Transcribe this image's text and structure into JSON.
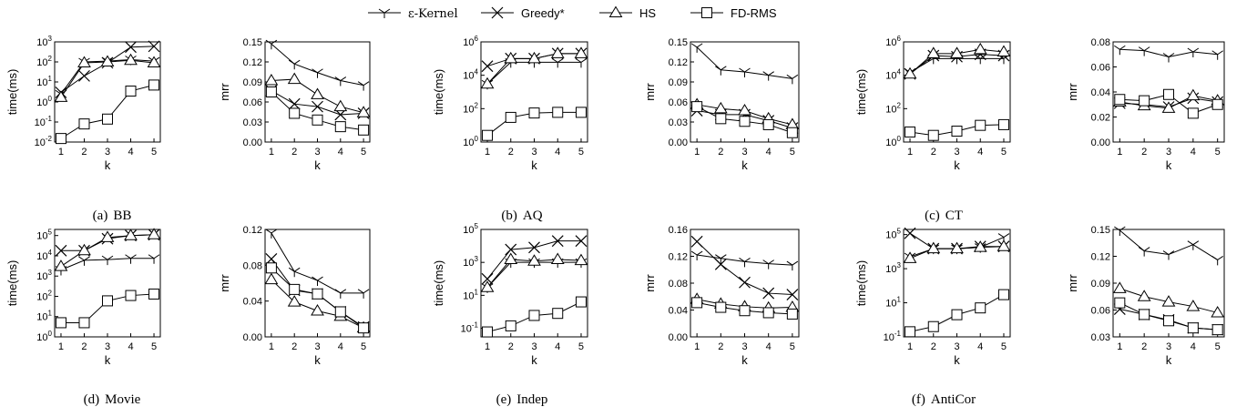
{
  "legend": {
    "entries": [
      {
        "label": "ε-Kernel",
        "marker": "tri-down-icon"
      },
      {
        "label": "Greedy*",
        "marker": "x-icon"
      },
      {
        "label": "HS",
        "marker": "triangle-icon"
      },
      {
        "label": "FD-RMS",
        "marker": "square-icon"
      }
    ]
  },
  "panels": [
    {
      "label": "(a)",
      "name": "BB"
    },
    {
      "label": "(b)",
      "name": "AQ"
    },
    {
      "label": "(c)",
      "name": "CT"
    },
    {
      "label": "(d)",
      "name": "Movie"
    },
    {
      "label": "(e)",
      "name": "Indep"
    },
    {
      "label": "(f)",
      "name": "AntiCor"
    }
  ],
  "chart_data": [
    {
      "panel": "BB",
      "type": "line",
      "xlabel": "k",
      "ylabel": "time(ms)",
      "yscale": "log",
      "x": [
        1,
        2,
        3,
        4,
        5
      ],
      "yticks": [
        "10^-2",
        "10^-1",
        "10^0",
        "10^1",
        "10^2",
        "10^3"
      ],
      "ylim": [
        0.01,
        1000
      ],
      "series": [
        {
          "name": "ε-Kernel",
          "values": [
            2.5,
            100,
            110,
            130,
            110
          ]
        },
        {
          "name": "Greedy*",
          "values": [
            3,
            20,
            90,
            550,
            600
          ]
        },
        {
          "name": "HS",
          "values": [
            1.7,
            90,
            100,
            120,
            90
          ]
        },
        {
          "name": "FD-RMS",
          "values": [
            0.015,
            0.08,
            0.14,
            3.5,
            7
          ]
        }
      ]
    },
    {
      "panel": "BB",
      "type": "line",
      "xlabel": "k",
      "ylabel": "mrr",
      "yscale": "linear",
      "x": [
        1,
        2,
        3,
        4,
        5
      ],
      "yticks": [
        "0.00",
        "0.03",
        "0.06",
        "0.09",
        "0.12",
        "0.15"
      ],
      "ylim": [
        0,
        0.15
      ],
      "series": [
        {
          "name": "ε-Kernel",
          "values": [
            0.147,
            0.117,
            0.104,
            0.092,
            0.085
          ]
        },
        {
          "name": "Greedy*",
          "values": [
            0.077,
            0.057,
            0.053,
            0.041,
            0.043
          ]
        },
        {
          "name": "HS",
          "values": [
            0.092,
            0.094,
            0.071,
            0.053,
            0.044
          ]
        },
        {
          "name": "FD-RMS",
          "values": [
            0.075,
            0.043,
            0.033,
            0.023,
            0.018
          ]
        }
      ]
    },
    {
      "panel": "AQ",
      "type": "line",
      "xlabel": "k",
      "ylabel": "time(ms)",
      "yscale": "log",
      "x": [
        1,
        2,
        3,
        4,
        5
      ],
      "yticks": [
        "10^0",
        "10^2",
        "10^4",
        "10^6"
      ],
      "ylim": [
        1,
        1000000
      ],
      "series": [
        {
          "name": "ε-Kernel",
          "values": [
            3000,
            60000,
            60000,
            60000,
            60000
          ]
        },
        {
          "name": "Greedy*",
          "values": [
            35000,
            100000,
            100000,
            200000,
            200000
          ]
        },
        {
          "name": "HS",
          "values": [
            3000,
            100000,
            100000,
            200000,
            200000
          ]
        },
        {
          "name": "FD-RMS",
          "values": [
            2.5,
            30,
            55,
            60,
            60
          ]
        }
      ]
    },
    {
      "panel": "AQ",
      "type": "line",
      "xlabel": "k",
      "ylabel": "mrr",
      "yscale": "linear",
      "x": [
        1,
        2,
        3,
        4,
        5
      ],
      "yticks": [
        "0.00",
        "0.03",
        "0.06",
        "0.09",
        "0.12",
        "0.15"
      ],
      "ylim": [
        0,
        0.15
      ],
      "series": [
        {
          "name": "ε-Kernel",
          "values": [
            0.142,
            0.108,
            0.105,
            0.1,
            0.095
          ]
        },
        {
          "name": "Greedy*",
          "values": [
            0.047,
            0.041,
            0.041,
            0.032,
            0.021
          ]
        },
        {
          "name": "HS",
          "values": [
            0.056,
            0.05,
            0.047,
            0.035,
            0.026
          ]
        },
        {
          "name": "FD-RMS",
          "values": [
            0.053,
            0.035,
            0.031,
            0.026,
            0.014
          ]
        }
      ]
    },
    {
      "panel": "CT",
      "type": "line",
      "xlabel": "k",
      "ylabel": "time(ms)",
      "yscale": "log",
      "x": [
        1,
        2,
        3,
        4,
        5
      ],
      "yticks": [
        "10^0",
        "10^2",
        "10^4",
        "10^6"
      ],
      "ylim": [
        1,
        1000000
      ],
      "series": [
        {
          "name": "ε-Kernel",
          "values": [
            15000,
            100000,
            100000,
            100000,
            100000
          ]
        },
        {
          "name": "Greedy*",
          "values": [
            12000,
            150000,
            130000,
            180000,
            150000
          ]
        },
        {
          "name": "HS",
          "values": [
            12000,
            200000,
            200000,
            350000,
            250000
          ]
        },
        {
          "name": "FD-RMS",
          "values": [
            4,
            2.5,
            4.5,
            10,
            11
          ]
        }
      ]
    },
    {
      "panel": "CT",
      "type": "line",
      "xlabel": "k",
      "ylabel": "mrr",
      "yscale": "linear",
      "x": [
        1,
        2,
        3,
        4,
        5
      ],
      "yticks": [
        "0.00",
        "0.02",
        "0.04",
        "0.06",
        "0.08"
      ],
      "ylim": [
        0,
        0.08
      ],
      "series": [
        {
          "name": "ε-Kernel",
          "values": [
            0.074,
            0.073,
            0.068,
            0.072,
            0.07
          ]
        },
        {
          "name": "Greedy*",
          "values": [
            0.031,
            0.03,
            0.028,
            0.035,
            0.032
          ]
        },
        {
          "name": "HS",
          "values": [
            0.032,
            0.029,
            0.027,
            0.037,
            0.033
          ]
        },
        {
          "name": "FD-RMS",
          "values": [
            0.034,
            0.033,
            0.038,
            0.023,
            0.03
          ]
        }
      ]
    },
    {
      "panel": "Movie",
      "type": "line",
      "xlabel": "k",
      "ylabel": "time(ms)",
      "yscale": "log",
      "x": [
        1,
        2,
        3,
        4,
        5
      ],
      "yticks": [
        "10^0",
        "10^1",
        "10^2",
        "10^3",
        "10^4",
        "10^5"
      ],
      "ylim": [
        1,
        200000
      ],
      "series": [
        {
          "name": "ε-Kernel",
          "values": [
            2000,
            6000,
            6500,
            7500,
            7500
          ]
        },
        {
          "name": "Greedy*",
          "values": [
            18000,
            18000,
            70000,
            100000,
            110000
          ]
        },
        {
          "name": "HS",
          "values": [
            3000,
            18000,
            80000,
            100000,
            110000
          ]
        },
        {
          "name": "FD-RMS",
          "values": [
            5,
            5,
            60,
            110,
            130
          ]
        }
      ]
    },
    {
      "panel": "Movie",
      "type": "line",
      "xlabel": "k",
      "ylabel": "mrr",
      "yscale": "linear",
      "x": [
        1,
        2,
        3,
        4,
        5
      ],
      "yticks": [
        "0.00",
        "0.04",
        "0.08",
        "0.12"
      ],
      "ylim": [
        0,
        0.12
      ],
      "series": [
        {
          "name": "ε-Kernel",
          "values": [
            0.116,
            0.073,
            0.063,
            0.049,
            0.049
          ]
        },
        {
          "name": "Greedy*",
          "values": [
            0.087,
            0.052,
            0.048,
            0.028,
            0.011
          ]
        },
        {
          "name": "HS",
          "values": [
            0.064,
            0.039,
            0.029,
            0.023,
            0.01
          ]
        },
        {
          "name": "FD-RMS",
          "values": [
            0.077,
            0.053,
            0.048,
            0.028,
            0.01
          ]
        }
      ]
    },
    {
      "panel": "Indep",
      "type": "line",
      "xlabel": "k",
      "ylabel": "time(ms)",
      "yscale": "log",
      "x": [
        1,
        2,
        3,
        4,
        5
      ],
      "yticks": [
        "10^-1",
        "10^1",
        "10^3",
        "10^5"
      ],
      "ylim": [
        0.03,
        100000
      ],
      "series": [
        {
          "name": "ε-Kernel",
          "values": [
            30,
            1000,
            1000,
            1000,
            1000
          ]
        },
        {
          "name": "Greedy*",
          "values": [
            100,
            6000,
            8000,
            20000,
            20000
          ]
        },
        {
          "name": "HS",
          "values": [
            30,
            1500,
            1200,
            1500,
            1300
          ]
        },
        {
          "name": "FD-RMS",
          "values": [
            0.06,
            0.14,
            0.6,
            0.8,
            4
          ]
        }
      ]
    },
    {
      "panel": "Indep",
      "type": "line",
      "xlabel": "k",
      "ylabel": "mrr",
      "yscale": "linear",
      "x": [
        1,
        2,
        3,
        4,
        5
      ],
      "yticks": [
        "0.00",
        "0.04",
        "0.08",
        "0.12",
        "0.16"
      ],
      "ylim": [
        0,
        0.16
      ],
      "series": [
        {
          "name": "ε-Kernel",
          "values": [
            0.122,
            0.117,
            0.112,
            0.109,
            0.107
          ]
        },
        {
          "name": "Greedy*",
          "values": [
            0.142,
            0.108,
            0.081,
            0.065,
            0.063
          ]
        },
        {
          "name": "HS",
          "values": [
            0.056,
            0.049,
            0.045,
            0.043,
            0.044
          ]
        },
        {
          "name": "FD-RMS",
          "values": [
            0.051,
            0.044,
            0.039,
            0.036,
            0.034
          ]
        }
      ]
    },
    {
      "panel": "AntiCor",
      "type": "line",
      "xlabel": "k",
      "ylabel": "time(ms)",
      "yscale": "log",
      "x": [
        1,
        2,
        3,
        4,
        5
      ],
      "yticks": [
        "10^-1",
        "10^1",
        "10^3",
        "10^5"
      ],
      "ylim": [
        0.1,
        200000
      ],
      "series": [
        {
          "name": "ε-Kernel",
          "values": [
            5000,
            15000,
            15000,
            18000,
            70000
          ]
        },
        {
          "name": "Greedy*",
          "values": [
            120000,
            15000,
            15000,
            20000,
            20000
          ]
        },
        {
          "name": "HS",
          "values": [
            4000,
            15000,
            15000,
            18000,
            20000
          ]
        },
        {
          "name": "FD-RMS",
          "values": [
            0.2,
            0.4,
            2,
            5,
            30
          ]
        }
      ]
    },
    {
      "panel": "AntiCor",
      "type": "line",
      "xlabel": "k",
      "ylabel": "mrr",
      "yscale": "linear",
      "x": [
        1,
        2,
        3,
        4,
        5
      ],
      "yticks": [
        "0.03",
        "0.06",
        "0.09",
        "0.12",
        "0.15"
      ],
      "ylim": [
        0.03,
        0.15
      ],
      "series": [
        {
          "name": "ε-Kernel",
          "values": [
            0.149,
            0.126,
            0.122,
            0.133,
            0.116
          ]
        },
        {
          "name": "Greedy*",
          "values": [
            0.061,
            0.055,
            0.049,
            0.04,
            0.038
          ]
        },
        {
          "name": "HS",
          "values": [
            0.084,
            0.075,
            0.069,
            0.064,
            0.057
          ]
        },
        {
          "name": "FD-RMS",
          "values": [
            0.068,
            0.055,
            0.048,
            0.04,
            0.038
          ]
        }
      ]
    }
  ]
}
